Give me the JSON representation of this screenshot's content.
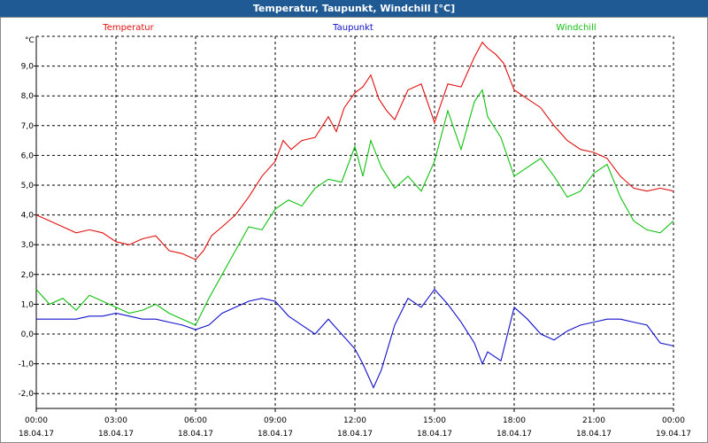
{
  "window": {
    "title": "Temperatur, Taupunkt, Windchill [°C]"
  },
  "chart_data": {
    "type": "line",
    "title": "Temperatur, Taupunkt, Windchill [°C]",
    "ylabel": "°C",
    "ylim": [
      -2.5,
      10.0
    ],
    "yticks": [
      "9,0",
      "8,0",
      "7,0",
      "6,0",
      "5,0",
      "4,0",
      "3,0",
      "2,0",
      "1,0",
      "0,0",
      "-1,0",
      "-2,0"
    ],
    "ytick_values": [
      9,
      8,
      7,
      6,
      5,
      4,
      3,
      2,
      1,
      0,
      -1,
      -2
    ],
    "xlim": [
      0,
      24
    ],
    "xtick_values": [
      0,
      3,
      6,
      9,
      12,
      15,
      18,
      21,
      24
    ],
    "xtick_times": [
      "00:00",
      "03:00",
      "06:00",
      "09:00",
      "12:00",
      "15:00",
      "18:00",
      "21:00",
      "00:00"
    ],
    "xtick_dates": [
      "18.04.17",
      "18.04.17",
      "18.04.17",
      "18.04.17",
      "18.04.17",
      "18.04.17",
      "18.04.17",
      "18.04.17",
      "19.04.17"
    ],
    "grid": true,
    "legend_position": "top",
    "series": [
      {
        "name": "Temperatur",
        "color": "#e01010",
        "x": [
          0,
          0.5,
          1,
          1.5,
          2,
          2.5,
          3,
          3.5,
          4,
          4.5,
          5,
          5.5,
          6,
          6.3,
          6.6,
          7,
          7.5,
          8,
          8.5,
          9,
          9.3,
          9.6,
          10,
          10.5,
          11,
          11.3,
          11.6,
          12,
          12.3,
          12.6,
          12.9,
          13.2,
          13.5,
          14,
          14.5,
          15,
          15.5,
          16,
          16.5,
          16.8,
          17,
          17.3,
          17.6,
          18,
          18.5,
          19,
          19.5,
          20,
          20.5,
          21,
          21.5,
          22,
          22.5,
          23,
          23.5,
          24
        ],
        "y": [
          4.0,
          3.8,
          3.6,
          3.4,
          3.5,
          3.4,
          3.1,
          3.0,
          3.2,
          3.3,
          2.8,
          2.7,
          2.5,
          2.8,
          3.3,
          3.6,
          4.0,
          4.6,
          5.3,
          5.8,
          6.5,
          6.2,
          6.5,
          6.6,
          7.3,
          6.8,
          7.6,
          8.1,
          8.3,
          8.7,
          7.9,
          7.5,
          7.2,
          8.2,
          8.4,
          7.1,
          8.4,
          8.3,
          9.3,
          9.8,
          9.6,
          9.4,
          9.1,
          8.2,
          7.9,
          7.6,
          7.0,
          6.5,
          6.2,
          6.1,
          5.9,
          5.3,
          4.9,
          4.8,
          4.9,
          4.8
        ]
      },
      {
        "name": "Taupunkt",
        "color": "#1010cc",
        "x": [
          0,
          0.5,
          1,
          1.5,
          2,
          2.5,
          3,
          3.5,
          4,
          4.5,
          5,
          5.5,
          6,
          6.5,
          7,
          7.5,
          8,
          8.5,
          9,
          9.5,
          10,
          10.5,
          11,
          11.5,
          12,
          12.3,
          12.7,
          13,
          13.5,
          14,
          14.5,
          15,
          15.5,
          16,
          16.5,
          16.8,
          17,
          17.5,
          18,
          18.5,
          19,
          19.5,
          20,
          20.5,
          21,
          21.5,
          22,
          22.5,
          23,
          23.5,
          24
        ],
        "y": [
          0.5,
          0.5,
          0.5,
          0.5,
          0.6,
          0.6,
          0.7,
          0.6,
          0.5,
          0.5,
          0.4,
          0.3,
          0.15,
          0.3,
          0.7,
          0.9,
          1.1,
          1.2,
          1.1,
          0.6,
          0.3,
          0.0,
          0.5,
          0.0,
          -0.5,
          -1.0,
          -1.8,
          -1.2,
          0.3,
          1.2,
          0.9,
          1.5,
          1.0,
          0.4,
          -0.3,
          -1.0,
          -0.6,
          -0.9,
          0.9,
          0.5,
          0.0,
          -0.2,
          0.1,
          0.3,
          0.4,
          0.5,
          0.5,
          0.4,
          0.3,
          -0.3,
          -0.4
        ]
      },
      {
        "name": "Windchill",
        "color": "#10c010",
        "x": [
          0,
          0.5,
          1,
          1.5,
          2,
          2.5,
          3,
          3.5,
          4,
          4.5,
          5,
          5.5,
          6,
          6.5,
          7,
          7.5,
          8,
          8.5,
          9,
          9.5,
          10,
          10.5,
          11,
          11.5,
          12,
          12.3,
          12.6,
          13,
          13.5,
          14,
          14.5,
          15,
          15.5,
          16,
          16.5,
          16.8,
          17,
          17.5,
          18,
          18.5,
          19,
          19.5,
          20,
          20.5,
          21,
          21.5,
          22,
          22.5,
          23,
          23.5,
          24
        ],
        "y": [
          1.5,
          1.0,
          1.2,
          0.8,
          1.3,
          1.1,
          0.9,
          0.7,
          0.8,
          1.0,
          0.7,
          0.5,
          0.3,
          1.2,
          2.0,
          2.8,
          3.6,
          3.5,
          4.2,
          4.5,
          4.3,
          4.9,
          5.2,
          5.1,
          6.3,
          5.3,
          6.5,
          5.6,
          4.9,
          5.3,
          4.8,
          5.8,
          7.5,
          6.2,
          7.8,
          8.2,
          7.3,
          6.6,
          5.3,
          5.6,
          5.9,
          5.3,
          4.6,
          4.8,
          5.4,
          5.7,
          4.6,
          3.8,
          3.5,
          3.4,
          3.8
        ]
      }
    ]
  }
}
